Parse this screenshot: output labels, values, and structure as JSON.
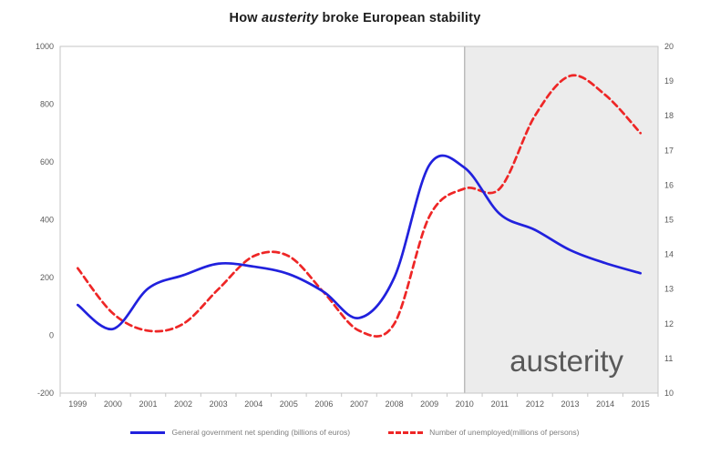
{
  "title": {
    "pre": "How ",
    "italic": "austerity",
    "post": " broke European stability"
  },
  "chart_data": {
    "type": "line",
    "x": [
      1999,
      2000,
      2001,
      2002,
      2003,
      2004,
      2005,
      2006,
      2007,
      2008,
      2009,
      2010,
      2011,
      2012,
      2013,
      2014,
      2015
    ],
    "x_tick_labels": [
      "1999",
      "2000",
      "2001",
      "2002",
      "2003",
      "2004",
      "2005",
      "2006",
      "2007",
      "2008",
      "2009",
      "2010",
      "2011",
      "2012",
      "2013",
      "2014",
      "2015"
    ],
    "x_domain": [
      1998.5,
      2015.5
    ],
    "series": [
      {
        "name": "General government net spending (billions of euros)",
        "axis": "left",
        "style": "solid",
        "color": "#2121dd",
        "values": [
          105,
          22,
          162,
          208,
          248,
          238,
          212,
          150,
          60,
          200,
          590,
          580,
          420,
          365,
          295,
          250,
          215
        ]
      },
      {
        "name": "Number of unemployed(millions of persons)",
        "axis": "right",
        "style": "dashed",
        "color": "#ee2626",
        "values": [
          13.6,
          12.3,
          11.8,
          12.0,
          13.0,
          13.95,
          13.95,
          12.9,
          11.8,
          12.0,
          15.1,
          15.9,
          15.9,
          18.0,
          19.15,
          18.6,
          17.5
        ]
      }
    ],
    "left_axis": {
      "min": -200,
      "max": 1000,
      "step": 200,
      "tick_labels": [
        "-200",
        "0",
        "200",
        "400",
        "600",
        "800",
        "1000"
      ]
    },
    "right_axis": {
      "min": 10,
      "max": 20,
      "step": 1,
      "tick_labels": [
        "10",
        "11",
        "12",
        "13",
        "14",
        "15",
        "16",
        "17",
        "18",
        "19",
        "20"
      ]
    },
    "grid": "off",
    "legend_position": "bottom",
    "annotation": {
      "label": "austerity",
      "region_start_year": 2010,
      "text_color": "#4d682b",
      "region_fill": "#ececec",
      "region_line_color": "#b3b3b3"
    },
    "frame_color": "#c6c6c6"
  }
}
